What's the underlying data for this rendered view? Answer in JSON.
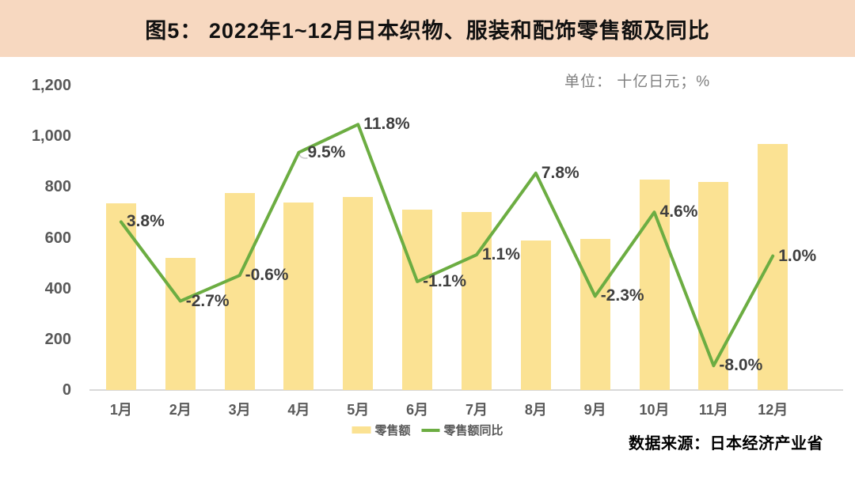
{
  "header": {
    "title": "图5： 2022年1~12月日本织物、服装和配饰零售额及同比"
  },
  "unit_label": "单位： 十亿日元；%",
  "source": "数据来源：日本经济产业省",
  "legend": [
    {
      "label": "零售额",
      "swatch": "bar-swatch"
    },
    {
      "label": "零售额同比",
      "swatch": "line-swatch"
    }
  ],
  "colors": {
    "header_bg": "#f7d8c0",
    "bar_fill": "#fbe293",
    "line_stroke": "#6cad42",
    "axis_text": "#595959",
    "data_label_text": "#3f3f3f",
    "baseline": "#d9d9d9",
    "unit_text": "#7f7f7f",
    "leader": "#c9c9c9"
  },
  "chart_data": {
    "type": "bar",
    "title": "图5： 2022年1~12月日本织物、服装和配饰零售额及同比",
    "categories": [
      "1月",
      "2月",
      "3月",
      "4月",
      "5月",
      "6月",
      "7月",
      "8月",
      "9月",
      "10月",
      "11月",
      "12月"
    ],
    "series": [
      {
        "name": "零售额",
        "type": "bar",
        "axis": "left",
        "values": [
          735,
          520,
          775,
          740,
          760,
          710,
          700,
          590,
          595,
          830,
          820,
          970
        ]
      },
      {
        "name": "零售额同比",
        "type": "line",
        "axis": "right",
        "values": [
          3.8,
          -2.7,
          -0.6,
          9.5,
          11.8,
          -1.1,
          1.1,
          7.8,
          -2.3,
          4.6,
          -8.0,
          1.0
        ],
        "point_labels": [
          "3.8%",
          "-2.7%",
          "-0.6%",
          "9.5%",
          "11.8%",
          "-1.1%",
          "1.1%",
          "7.8%",
          "-2.3%",
          "4.6%",
          "-8.0%",
          "1.0%"
        ]
      }
    ],
    "left_axis": {
      "min": 0,
      "max": 1200,
      "tick_step": 200,
      "tick_labels": [
        "0",
        "200",
        "400",
        "600",
        "800",
        "1,000",
        "1,200"
      ]
    },
    "right_axis": {
      "min": -10,
      "max": 15,
      "tick_labels_visible": false
    },
    "grid": false,
    "legend_position": "bottom",
    "unit": "十亿日元；%"
  }
}
